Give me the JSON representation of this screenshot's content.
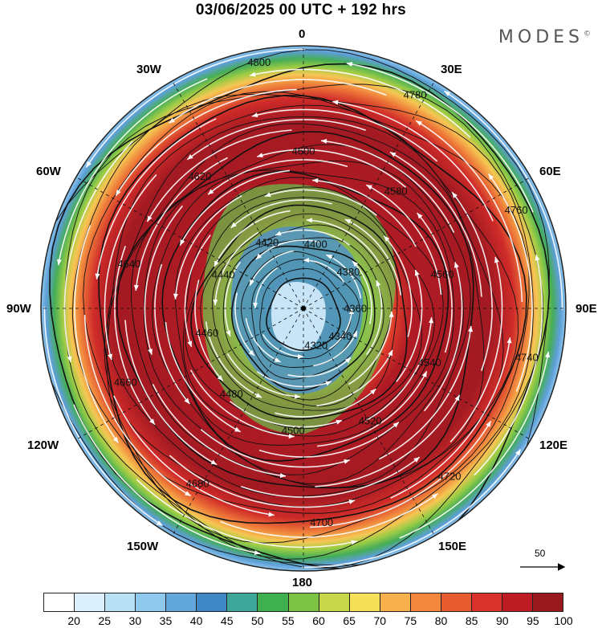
{
  "title": "03/06/2025  00 UTC  + 192 hrs",
  "brand": "MODES",
  "brand_mark": "©",
  "longitude_labels": {
    "lon_0": "0",
    "lon_30e": "30E",
    "lon_60e": "60E",
    "lon_90e": "90E",
    "lon_120e": "120E",
    "lon_150e": "150E",
    "lon_180": "180",
    "lon_150w": "150W",
    "lon_120w": "120W",
    "lon_90w": "90W",
    "lon_60w": "60W",
    "lon_30w": "30W"
  },
  "contour_labels": [
    "4800",
    "4780",
    "4760",
    "4740",
    "4720",
    "4700",
    "4680",
    "4660",
    "4640",
    "4620",
    "4600",
    "4580",
    "4560",
    "4540",
    "4520",
    "4500",
    "4480",
    "4460",
    "4440",
    "4420",
    "4400",
    "4380",
    "4360",
    "4340",
    "4320"
  ],
  "vector_scale": {
    "value": "50"
  },
  "colorbar": {
    "ticks": [
      "20",
      "25",
      "30",
      "35",
      "40",
      "45",
      "50",
      "55",
      "60",
      "65",
      "70",
      "75",
      "80",
      "85",
      "90",
      "95",
      "100"
    ],
    "colors": [
      "#ffffff",
      "#dcf0fb",
      "#b9e1f6",
      "#8fcaee",
      "#63a8dc",
      "#3f86c4",
      "#3ea79a",
      "#3fb04f",
      "#7cc243",
      "#c6d84a",
      "#f6df59",
      "#f7b24e",
      "#f3873d",
      "#e75b31",
      "#d8322b",
      "#bd1c25",
      "#981a1f"
    ]
  }
}
